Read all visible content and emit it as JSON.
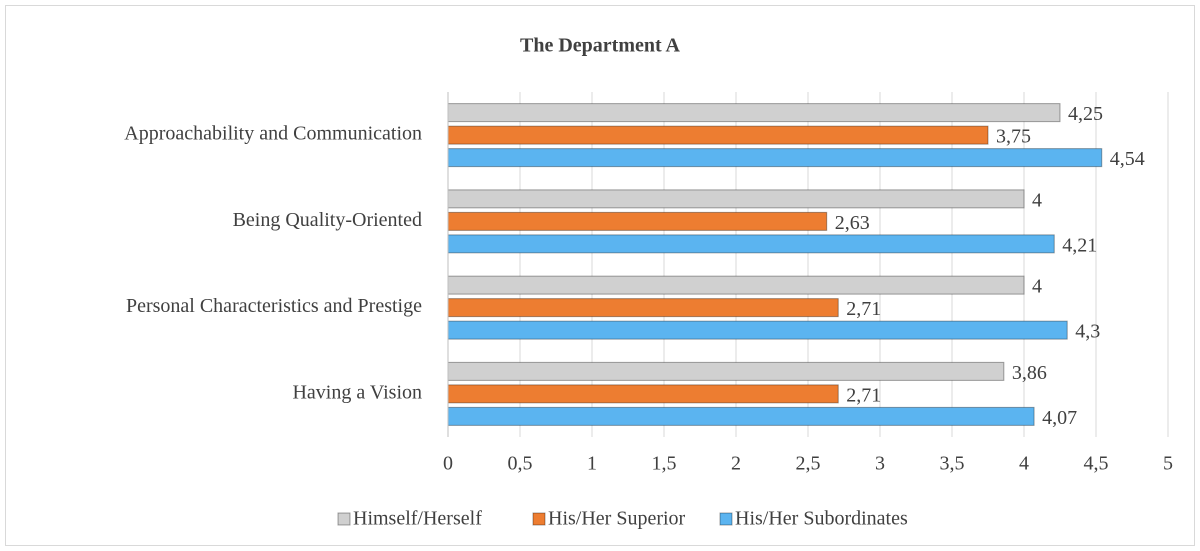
{
  "chart_data": {
    "type": "bar",
    "orientation": "horizontal",
    "title": "The Department A",
    "categories": [
      "Approachability and Communication",
      "Being Quality-Oriented",
      "Personal Characteristics and Prestige",
      "Having a Vision"
    ],
    "series": [
      {
        "name": "Himself/Herself",
        "color": "#d0d0d0",
        "values": [
          4.25,
          4,
          4,
          3.86
        ],
        "value_labels": [
          "4,25",
          "4",
          "4",
          "3,86"
        ]
      },
      {
        "name": "His/Her Superior",
        "color": "#ed7d31",
        "values": [
          3.75,
          2.63,
          2.71,
          2.71
        ],
        "value_labels": [
          "3,75",
          "2,63",
          "2,71",
          "2,71"
        ]
      },
      {
        "name": "His/Her Subordinates",
        "color": "#5bb4f0",
        "values": [
          4.54,
          4.21,
          4.3,
          4.07
        ],
        "value_labels": [
          "4,54",
          "4,21",
          "4,3",
          "4,07"
        ]
      }
    ],
    "xlim": [
      0,
      5
    ],
    "xticks": [
      0,
      {
        "value": 0.5,
        "label": "0,5"
      },
      1,
      {
        "value": 1.5,
        "label": "1,5"
      },
      2,
      {
        "value": 2.5,
        "label": "2,5"
      },
      3,
      {
        "value": 3.5,
        "label": "3,5"
      },
      4,
      {
        "value": 4.5,
        "label": "4,5"
      },
      5
    ],
    "grid": true,
    "legend": "bottom"
  }
}
